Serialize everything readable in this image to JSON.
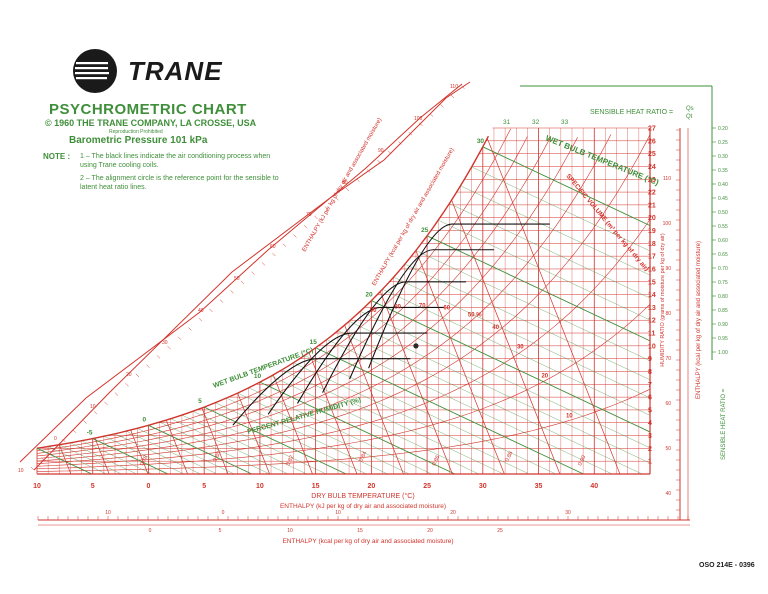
{
  "header": {
    "brand": "TRANE",
    "title": "PSYCHROMETRIC CHART",
    "copyright": "© 1960 THE TRANE COMPANY, LA CROSSE, USA",
    "reproduction": "Reproduction Prohibited",
    "pressure": "Barometric Pressure 101 kPa",
    "note_label": "NOTE :",
    "note_1": "1 – The black lines indicate the air conditioning process when using Trane cooling coils.",
    "note_2": "2 – The alignment circle is the reference point for the sensible to latent heat ratio lines."
  },
  "footer": {
    "doc_code": "OSO 214E - 0396"
  },
  "colors": {
    "grid": "#d2342c",
    "wetbulb": "#3f8f3a",
    "process": "#111111",
    "brand": "#1a1a1a"
  },
  "chart_data": {
    "type": "line",
    "title": "PSYCHROMETRIC CHART",
    "xlabel": "DRY BULB TEMPERATURE (°C)",
    "ylabel": "HUMIDITY RATIO (grams of moisture per kg of dry air)",
    "xlim": [
      -10,
      45
    ],
    "ylim": [
      0,
      27
    ],
    "x_ticks": [
      -10,
      -5,
      0,
      5,
      10,
      15,
      20,
      25,
      30,
      35,
      40
    ],
    "x_tick_labels": [
      "10",
      "5",
      "0",
      "5",
      "10",
      "15",
      "20",
      "25",
      "30",
      "35",
      "40"
    ],
    "y_ticks": [
      1,
      2,
      3,
      4,
      5,
      6,
      7,
      8,
      9,
      10,
      11,
      12,
      13,
      14,
      15,
      16,
      17,
      18,
      19,
      20,
      21,
      22,
      23,
      24,
      25,
      26,
      27
    ],
    "relative_humidity_levels": [
      10,
      20,
      30,
      40,
      50,
      60,
      70,
      80,
      90,
      100
    ],
    "rh_labels": [
      "10",
      "20",
      "30",
      "40",
      "50 %",
      "60",
      "70",
      "80",
      "90"
    ],
    "wet_bulb_temps": [
      -5,
      0,
      5,
      10,
      15,
      20,
      25,
      30
    ],
    "wet_bulb_tick_labels": [
      "31",
      "32",
      "33"
    ],
    "specific_volume_labels": [
      "0.78",
      "0.80",
      "0.82",
      "0.84",
      "0.86",
      "0.88",
      "0.90"
    ],
    "process_line_ends": [
      {
        "x": 27,
        "y": 19.5
      },
      {
        "x": 22,
        "y": 17.5
      },
      {
        "x": 19.5,
        "y": 15
      },
      {
        "x": 17.5,
        "y": 13
      },
      {
        "x": 16,
        "y": 11
      },
      {
        "x": 14.5,
        "y": 9
      }
    ],
    "alignment_circle": {
      "x": 24,
      "y": 10
    },
    "labels": {
      "wet_bulb": "WET BULB TEMPERATURE (°C)",
      "wet_bulb_left": "WET BULB TEMPERATURE (°C)",
      "specific_volume": "SPECIFIC VOLUME (m³ per kg of dry air)",
      "relative_humidity": "PERCENT RELATIVE HUMIDITY (%)",
      "enthalpy_kj": "ENTHALPY (kJ per kg of dry air and associated moisture)",
      "enthalpy_kcal": "ENTHALPY (kcal per kg of dry air and associated moisture)",
      "sensible_heat_ratio": "SENSIBLE HEAT RATIO =",
      "shr_fraction_num": "Qs",
      "shr_fraction_den": "Qt",
      "humidity_ratio": "HUMIDITY RATIO (grams of moisture per kg of dry air)"
    },
    "shr_scale": [
      "0.20",
      "0.25",
      "0.30",
      "0.35",
      "0.40",
      "0.45",
      "0.50",
      "0.55",
      "0.60",
      "0.65",
      "0.70",
      "0.75",
      "0.80",
      "0.85",
      "0.90",
      "0.95",
      "1.00"
    ],
    "enthalpy_kj_scale": [
      "10",
      "0",
      "10",
      "20",
      "30",
      "40",
      "50",
      "60",
      "70",
      "80",
      "90",
      "100",
      "110"
    ],
    "enthalpy_kcal_scale": [
      "0",
      "5",
      "10",
      "15",
      "20",
      "25"
    ],
    "grid": true,
    "legend": "none"
  }
}
